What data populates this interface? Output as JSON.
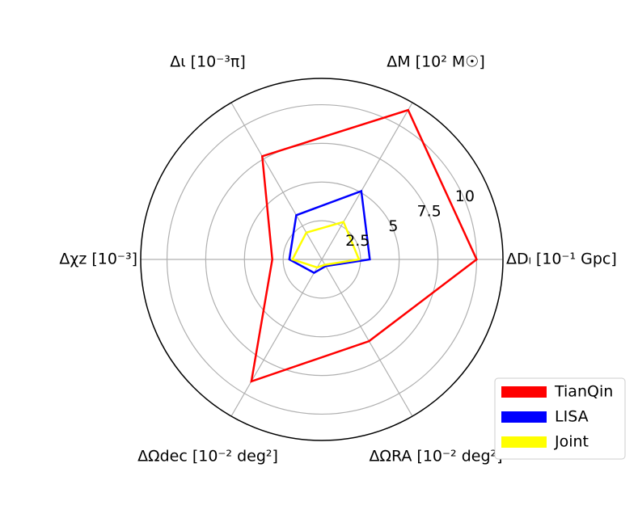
{
  "chart_data": {
    "type": "radar",
    "categories": [
      "ΔDₗ [10⁻¹ Gpc]",
      "ΔM [10² M☉]",
      "Δι [10⁻³π]",
      "Δχz [10⁻³]",
      "ΔΩdec [10⁻² deg²]",
      "ΔΩRA [10⁻² deg²]"
    ],
    "series": [
      {
        "name": "TianQin",
        "color": "#ff0000",
        "values": [
          10.0,
          11.15,
          7.7,
          3.2,
          9.1,
          6.1
        ]
      },
      {
        "name": "LISA",
        "color": "#0000ff",
        "values": [
          3.1,
          5.1,
          3.3,
          2.1,
          1.0,
          0.5
        ]
      },
      {
        "name": "Joint",
        "color": "#ffff00",
        "values": [
          2.4,
          2.8,
          2.0,
          1.9,
          0.6,
          0.4
        ]
      }
    ],
    "ylim": [
      0,
      11.7
    ],
    "yticks": [
      2.5,
      5,
      {
        "value": 7.5,
        "label": "7.5"
      },
      10
    ],
    "grid": true,
    "legend": "lower right"
  }
}
